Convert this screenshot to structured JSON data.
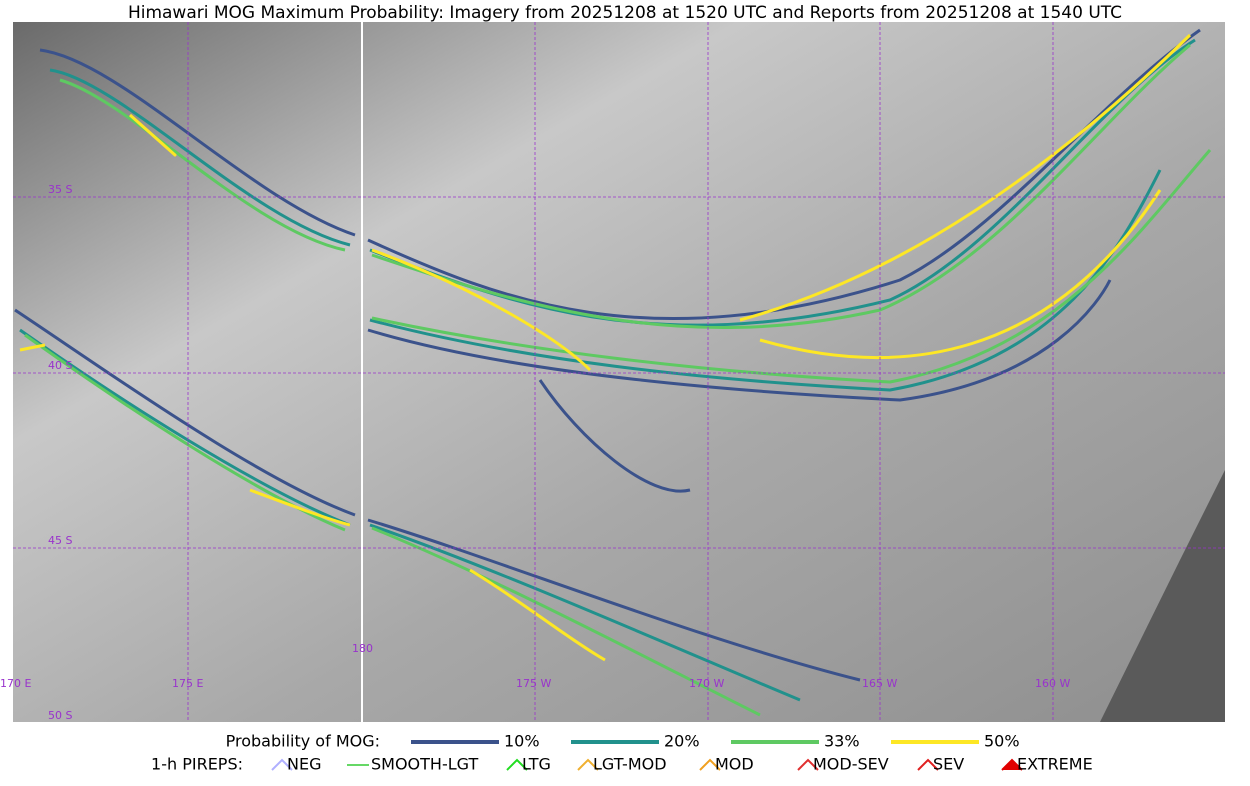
{
  "title": "Himawari MOG Maximum Probability: Imagery from 20251208 at 1520 UTC and Reports from 20251208 at 1540 UTC",
  "map": {
    "lat_labels": [
      "35 S",
      "40 S",
      "45 S",
      "50 S"
    ],
    "lon_labels": [
      "170 E",
      "175 E",
      "180",
      "175 W",
      "170 W",
      "165 W",
      "160 W"
    ]
  },
  "legend": {
    "probability": {
      "label": "Probability of MOG:",
      "items": [
        {
          "label": "10%",
          "color": "#3b528b"
        },
        {
          "label": "20%",
          "color": "#21918c"
        },
        {
          "label": "33%",
          "color": "#5ec962"
        },
        {
          "label": "50%",
          "color": "#fde725"
        }
      ]
    },
    "pireps": {
      "label": "1-h PIREPS:",
      "items": [
        {
          "label": "NEG",
          "color": "#b0b0ff"
        },
        {
          "label": "SMOOTH-LGT",
          "color": "#33cc33"
        },
        {
          "label": "LTG",
          "color": "#22dd22"
        },
        {
          "label": "LGT-MOD",
          "color": "#f0b030"
        },
        {
          "label": "MOD",
          "color": "#f0a020"
        },
        {
          "label": "MOD-SEV",
          "color": "#e03030"
        },
        {
          "label": "SEV",
          "color": "#e02020"
        },
        {
          "label": "EXTREME",
          "color": "#e00000"
        }
      ]
    }
  }
}
